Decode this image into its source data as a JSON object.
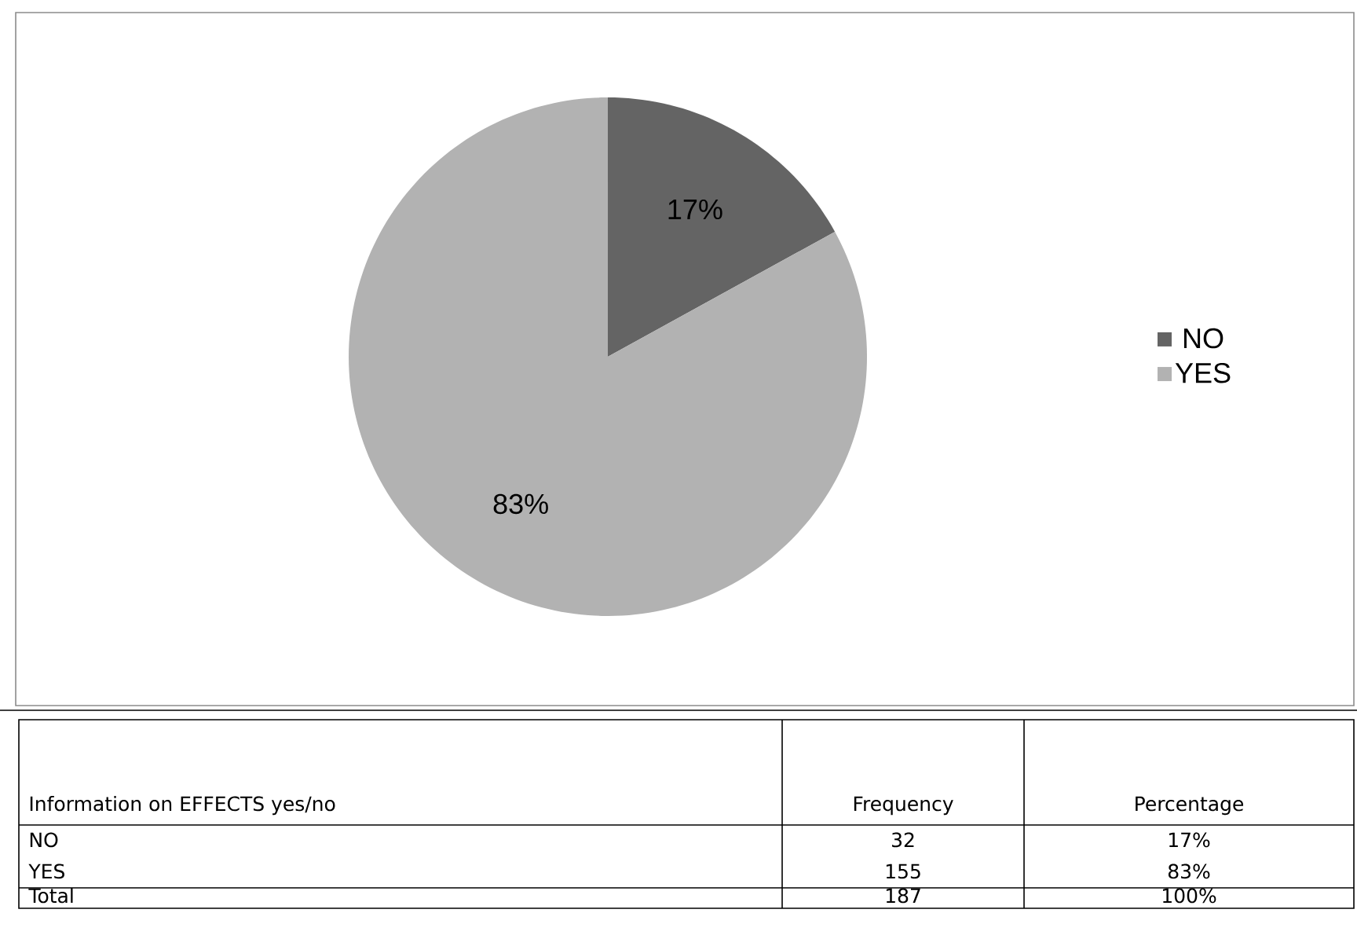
{
  "chart_data": {
    "type": "pie",
    "categories": [
      "NO",
      "YES"
    ],
    "values": [
      17,
      83
    ],
    "colors": [
      "#646464",
      "#b2b2b2"
    ],
    "value_labels": [
      "17%",
      "83%"
    ],
    "legend": "right",
    "annotations": [
      "Information on EFFECTS yes/no",
      "Frequency",
      "Percentage",
      "32",
      "155",
      "Total",
      "187",
      "100%"
    ]
  }
}
